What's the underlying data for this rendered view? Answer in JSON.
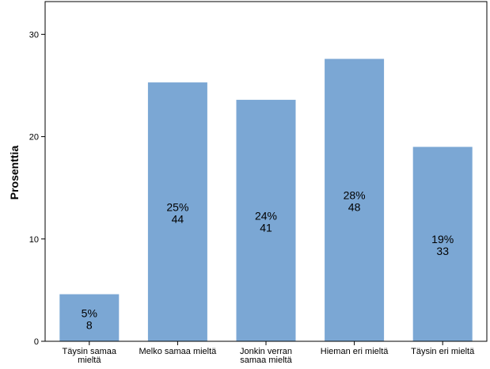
{
  "chart_data": {
    "type": "bar",
    "categories": [
      [
        "Täysin samaa",
        "mieltä"
      ],
      [
        "Melko samaa mieltä"
      ],
      [
        "Jonkin verran",
        "samaa mieltä"
      ],
      [
        "Hieman eri mieltä"
      ],
      [
        "Täysin eri mieltä"
      ]
    ],
    "values": [
      4.6,
      25.3,
      23.6,
      27.6,
      19.0
    ],
    "percent_labels": [
      "5%",
      "25%",
      "24%",
      "28%",
      "19%"
    ],
    "count_labels": [
      "8",
      "44",
      "41",
      "48",
      "33"
    ],
    "ylabel": "Prosenttia",
    "ylim": [
      0,
      33.2
    ],
    "yticks": [
      0,
      10,
      20,
      30
    ],
    "grid": false,
    "colors": {
      "bar": "#7ba7d4",
      "axis": "#000000"
    }
  }
}
